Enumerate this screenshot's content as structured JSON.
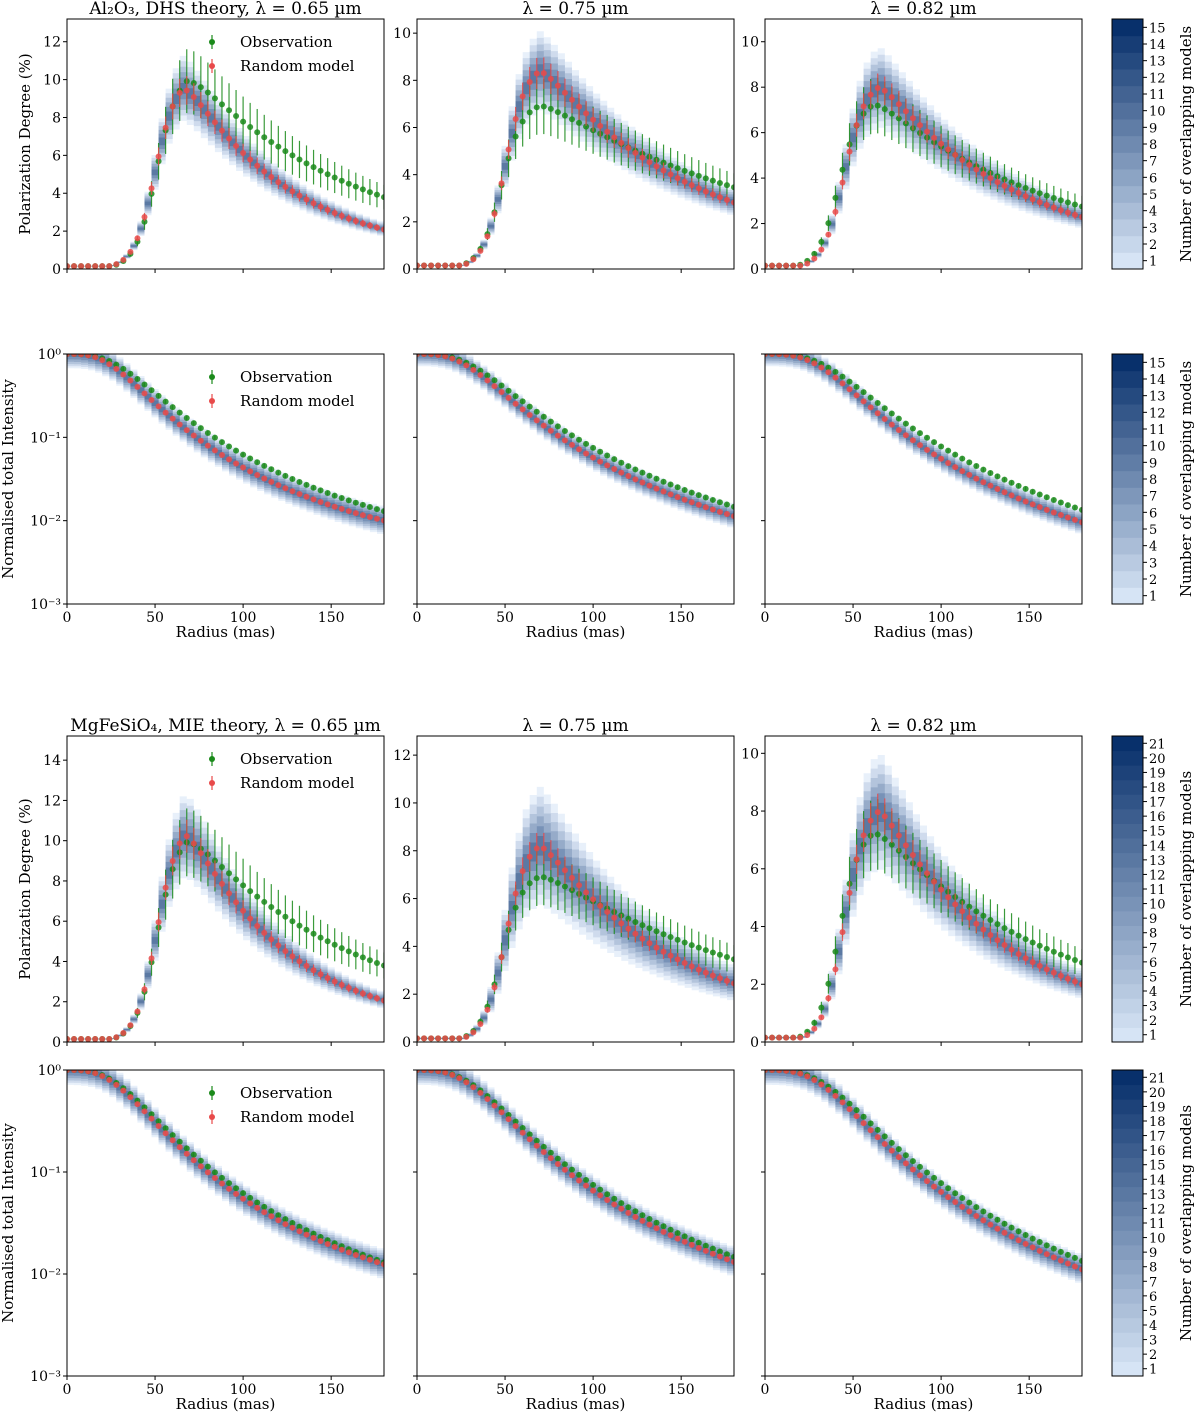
{
  "colors": {
    "observation": "#1a8a1a",
    "random_model": "#e84a4a",
    "band_light": "#d6e4f5",
    "band_dark": "#08306b"
  },
  "legend": {
    "observation": "Observation",
    "random_model": "Random model"
  },
  "colorbar_label": "Number of overlapping models",
  "chart_data": [
    {
      "type": "scatter",
      "title": "Al₂O₃, DHS theory, λ = 0.65 µm",
      "ylabel": "Polarization Degree (%)",
      "xlabel": "",
      "xlim": [
        0,
        180
      ],
      "ylim": [
        0,
        13.2
      ],
      "yticks": [
        0,
        2,
        4,
        6,
        8,
        10,
        12
      ],
      "xticks": [
        0,
        50,
        100,
        150
      ],
      "legend": true,
      "observation": {
        "peak": 10.5,
        "peak_r": 68,
        "width": 17,
        "tail": 3.0,
        "scale": 85
      },
      "model": {
        "peak": 10.2,
        "peak_r": 66,
        "width": 16,
        "tail": 1.7,
        "scale": 60
      },
      "band_spread": 0.18
    },
    {
      "type": "scatter",
      "title": "λ = 0.75 µm",
      "ylabel": "",
      "xlabel": "",
      "xlim": [
        0,
        180
      ],
      "ylim": [
        0,
        10.6
      ],
      "yticks": [
        0,
        2,
        4,
        6,
        8,
        10
      ],
      "xticks": [
        0,
        50,
        100,
        150
      ],
      "legend": false,
      "observation": {
        "peak": 7.1,
        "peak_r": 70,
        "width": 22,
        "tail": 2.6,
        "scale": 110
      },
      "model": {
        "peak": 8.7,
        "peak_r": 70,
        "width": 20,
        "tail": 1.9,
        "scale": 80
      },
      "band_spread": 0.2
    },
    {
      "type": "scatter",
      "title": "λ = 0.82 µm",
      "ylabel": "",
      "xlabel": "",
      "xlim": [
        0,
        180
      ],
      "ylim": [
        0,
        11.0
      ],
      "yticks": [
        0,
        2,
        4,
        6,
        8,
        10
      ],
      "xticks": [
        0,
        50,
        100,
        150
      ],
      "legend": false,
      "observation": {
        "peak": 7.5,
        "peak_r": 62,
        "width": 20,
        "tail": 2.2,
        "scale": 90
      },
      "model": {
        "peak": 8.3,
        "peak_r": 65,
        "width": 20,
        "tail": 1.5,
        "scale": 75
      },
      "band_spread": 0.22,
      "colorbar": {
        "max": 15
      }
    },
    {
      "type": "scatter",
      "title": "",
      "ylabel": "Normalised total Intensity",
      "xlabel": "Radius (mas)",
      "xlim": [
        0,
        180
      ],
      "yscale": "log",
      "ylim": [
        0.001,
        1
      ],
      "yticks": [
        "10⁻³",
        "10⁻²",
        "10⁻¹",
        "10⁰"
      ],
      "xticks": [
        0,
        50,
        100,
        150
      ],
      "legend": true,
      "observation": {
        "half_r": 40,
        "steep": 3.0,
        "floor": 0.0038
      },
      "model": {
        "half_r": 35,
        "steep": 3.0,
        "floor": 0.0048
      },
      "band_spread": 0.3
    },
    {
      "type": "scatter",
      "title": "",
      "ylabel": "",
      "xlabel": "Radius (mas)",
      "xlim": [
        0,
        180
      ],
      "yscale": "log",
      "ylim": [
        0.001,
        1
      ],
      "xticks": [
        0,
        50,
        100,
        150
      ],
      "legend": false,
      "observation": {
        "half_r": 43,
        "steep": 3.0,
        "floor": 0.0022
      },
      "model": {
        "half_r": 39,
        "steep": 3.0,
        "floor": 0.0022
      },
      "band_spread": 0.25
    },
    {
      "type": "scatter",
      "title": "",
      "ylabel": "",
      "xlabel": "Radius (mas)",
      "xlim": [
        0,
        180
      ],
      "yscale": "log",
      "ylim": [
        0.001,
        1
      ],
      "xticks": [
        0,
        50,
        100,
        150
      ],
      "legend": false,
      "observation": {
        "half_r": 46,
        "steep": 3.2,
        "floor": 0.0016
      },
      "model": {
        "half_r": 41,
        "steep": 3.2,
        "floor": 0.0015
      },
      "band_spread": 0.25,
      "colorbar": {
        "max": 15
      }
    },
    {
      "type": "scatter",
      "title": "MgFeSiO₄, MIE theory, λ = 0.65 µm",
      "ylabel": "Polarization Degree (%)",
      "xlabel": "",
      "xlim": [
        0,
        180
      ],
      "ylim": [
        0,
        15.2
      ],
      "yticks": [
        0,
        2,
        4,
        6,
        8,
        10,
        12,
        14
      ],
      "xticks": [
        0,
        50,
        100,
        150
      ],
      "legend": true,
      "observation": {
        "peak": 10.5,
        "peak_r": 68,
        "width": 17,
        "tail": 3.0,
        "scale": 85
      },
      "model": {
        "peak": 11.0,
        "peak_r": 67,
        "width": 16,
        "tail": 1.5,
        "scale": 58
      },
      "band_spread": 0.2
    },
    {
      "type": "scatter",
      "title": "λ = 0.75 µm",
      "ylabel": "",
      "xlabel": "",
      "xlim": [
        0,
        180
      ],
      "ylim": [
        0,
        12.8
      ],
      "yticks": [
        0,
        2,
        4,
        6,
        8,
        10,
        12
      ],
      "xticks": [
        0,
        50,
        100,
        150
      ],
      "legend": false,
      "observation": {
        "peak": 7.1,
        "peak_r": 70,
        "width": 22,
        "tail": 2.6,
        "scale": 110
      },
      "model": {
        "peak": 8.5,
        "peak_r": 70,
        "width": 20,
        "tail": 1.5,
        "scale": 75
      },
      "band_spread": 0.3
    },
    {
      "type": "scatter",
      "title": "λ = 0.82 µm",
      "ylabel": "",
      "xlabel": "",
      "xlim": [
        0,
        180
      ],
      "ylim": [
        0,
        10.6
      ],
      "yticks": [
        0,
        2,
        4,
        6,
        8,
        10
      ],
      "xticks": [
        0,
        50,
        100,
        150
      ],
      "legend": false,
      "observation": {
        "peak": 7.5,
        "peak_r": 62,
        "width": 20,
        "tail": 2.2,
        "scale": 90
      },
      "model": {
        "peak": 8.3,
        "peak_r": 65,
        "width": 20,
        "tail": 1.2,
        "scale": 70
      },
      "band_spread": 0.25,
      "colorbar": {
        "max": 21
      }
    },
    {
      "type": "scatter",
      "title": "",
      "ylabel": "Normalised total Intensity",
      "xlabel": "Radius (mas)",
      "xlim": [
        0,
        180
      ],
      "yscale": "log",
      "ylim": [
        0.001,
        1
      ],
      "yticks": [
        "10⁻³",
        "10⁻²",
        "10⁻¹",
        "10⁰"
      ],
      "xticks": [
        0,
        50,
        100,
        150
      ],
      "legend": true,
      "observation": {
        "half_r": 40,
        "steep": 3.0,
        "floor": 0.0038
      },
      "model": {
        "half_r": 38,
        "steep": 3.0,
        "floor": 0.0055
      },
      "band_spread": 0.25
    },
    {
      "type": "scatter",
      "title": "",
      "ylabel": "",
      "xlabel": "Radius (mas)",
      "xlim": [
        0,
        180
      ],
      "yscale": "log",
      "ylim": [
        0.001,
        1
      ],
      "xticks": [
        0,
        50,
        100,
        150
      ],
      "legend": false,
      "observation": {
        "half_r": 43,
        "steep": 3.0,
        "floor": 0.0022
      },
      "model": {
        "half_r": 41,
        "steep": 3.0,
        "floor": 0.0026
      },
      "band_spread": 0.25
    },
    {
      "type": "scatter",
      "title": "",
      "ylabel": "",
      "xlabel": "Radius (mas)",
      "xlim": [
        0,
        180
      ],
      "yscale": "log",
      "ylim": [
        0.001,
        1
      ],
      "xticks": [
        0,
        50,
        100,
        150
      ],
      "legend": false,
      "observation": {
        "half_r": 46,
        "steep": 3.2,
        "floor": 0.0016
      },
      "model": {
        "half_r": 43,
        "steep": 3.2,
        "floor": 0.0017
      },
      "band_spread": 0.25,
      "colorbar": {
        "max": 21
      }
    }
  ]
}
